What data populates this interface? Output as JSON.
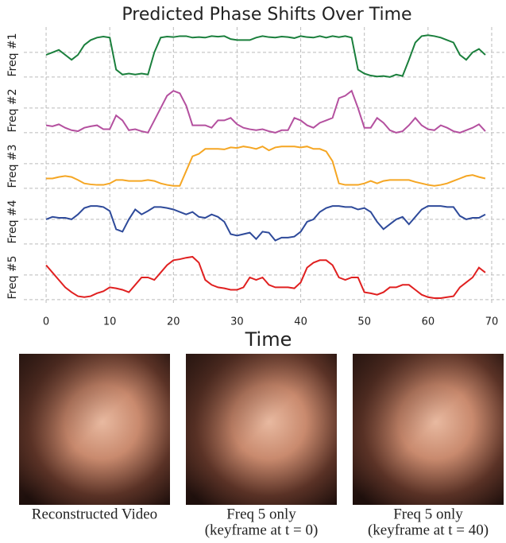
{
  "chart_data": {
    "type": "line",
    "title": "Predicted Phase Shifts Over Time",
    "xlabel": "Time",
    "x": [
      0,
      1,
      2,
      3,
      4,
      5,
      6,
      7,
      8,
      9,
      10,
      11,
      12,
      13,
      14,
      15,
      16,
      17,
      18,
      19,
      20,
      21,
      22,
      23,
      24,
      25,
      26,
      27,
      28,
      29,
      30,
      31,
      32,
      33,
      34,
      35,
      36,
      37,
      38,
      39,
      40,
      41,
      42,
      43,
      44,
      45,
      46,
      47,
      48,
      49,
      50,
      51,
      52,
      53,
      54,
      55,
      56,
      57,
      58,
      59,
      60,
      61,
      62,
      63,
      64,
      65,
      66,
      67,
      68,
      69
    ],
    "xlim": [
      -3.5,
      72
    ],
    "xticks": [
      0,
      10,
      20,
      30,
      40,
      50,
      60,
      70
    ],
    "ylim": [
      0,
      1
    ],
    "yticks": [
      0.05,
      0.55
    ],
    "grid": true,
    "stacked_panels": true,
    "series": [
      {
        "name": "Freq #1",
        "color": "#1a7f3c",
        "values": [
          0.5,
          0.55,
          0.6,
          0.5,
          0.4,
          0.5,
          0.7,
          0.8,
          0.85,
          0.87,
          0.85,
          0.2,
          0.1,
          0.12,
          0.1,
          0.12,
          0.1,
          0.55,
          0.85,
          0.87,
          0.86,
          0.88,
          0.88,
          0.85,
          0.86,
          0.85,
          0.88,
          0.87,
          0.88,
          0.82,
          0.8,
          0.8,
          0.8,
          0.85,
          0.88,
          0.86,
          0.85,
          0.87,
          0.86,
          0.84,
          0.88,
          0.86,
          0.85,
          0.88,
          0.85,
          0.88,
          0.86,
          0.88,
          0.85,
          0.2,
          0.12,
          0.08,
          0.06,
          0.07,
          0.05,
          0.1,
          0.07,
          0.4,
          0.75,
          0.88,
          0.9,
          0.88,
          0.85,
          0.8,
          0.75,
          0.5,
          0.4,
          0.55,
          0.62,
          0.5
        ]
      },
      {
        "name": "Freq #2",
        "color": "#b4509f",
        "values": [
          0.2,
          0.18,
          0.22,
          0.15,
          0.1,
          0.08,
          0.15,
          0.18,
          0.2,
          0.12,
          0.12,
          0.4,
          0.3,
          0.1,
          0.12,
          0.08,
          0.05,
          0.3,
          0.55,
          0.8,
          0.9,
          0.85,
          0.6,
          0.2,
          0.2,
          0.2,
          0.15,
          0.3,
          0.3,
          0.35,
          0.22,
          0.15,
          0.12,
          0.1,
          0.12,
          0.08,
          0.05,
          0.1,
          0.1,
          0.35,
          0.3,
          0.2,
          0.15,
          0.25,
          0.3,
          0.35,
          0.75,
          0.8,
          0.9,
          0.55,
          0.15,
          0.15,
          0.35,
          0.25,
          0.1,
          0.05,
          0.08,
          0.2,
          0.35,
          0.2,
          0.12,
          0.1,
          0.2,
          0.15,
          0.08,
          0.05,
          0.1,
          0.15,
          0.22,
          0.08
        ]
      },
      {
        "name": "Freq #3",
        "color": "#f5a623",
        "values": [
          0.25,
          0.25,
          0.28,
          0.3,
          0.28,
          0.22,
          0.15,
          0.13,
          0.12,
          0.12,
          0.15,
          0.22,
          0.22,
          0.2,
          0.2,
          0.2,
          0.22,
          0.2,
          0.15,
          0.12,
          0.1,
          0.1,
          0.4,
          0.7,
          0.75,
          0.85,
          0.85,
          0.85,
          0.84,
          0.88,
          0.87,
          0.9,
          0.88,
          0.85,
          0.9,
          0.82,
          0.88,
          0.9,
          0.9,
          0.9,
          0.88,
          0.9,
          0.85,
          0.85,
          0.8,
          0.6,
          0.15,
          0.12,
          0.12,
          0.12,
          0.15,
          0.2,
          0.15,
          0.2,
          0.22,
          0.22,
          0.22,
          0.22,
          0.18,
          0.15,
          0.12,
          0.1,
          0.12,
          0.15,
          0.2,
          0.25,
          0.3,
          0.32,
          0.28,
          0.25
        ]
      },
      {
        "name": "Freq #4",
        "color": "#2e4a9a",
        "values": [
          0.55,
          0.6,
          0.58,
          0.58,
          0.55,
          0.65,
          0.78,
          0.82,
          0.82,
          0.8,
          0.72,
          0.35,
          0.3,
          0.55,
          0.75,
          0.65,
          0.72,
          0.8,
          0.8,
          0.78,
          0.75,
          0.7,
          0.65,
          0.7,
          0.6,
          0.58,
          0.65,
          0.6,
          0.5,
          0.25,
          0.22,
          0.25,
          0.28,
          0.15,
          0.3,
          0.28,
          0.12,
          0.18,
          0.18,
          0.2,
          0.3,
          0.5,
          0.55,
          0.7,
          0.78,
          0.82,
          0.82,
          0.8,
          0.8,
          0.75,
          0.78,
          0.7,
          0.5,
          0.35,
          0.45,
          0.55,
          0.6,
          0.45,
          0.6,
          0.75,
          0.82,
          0.82,
          0.82,
          0.8,
          0.8,
          0.62,
          0.55,
          0.58,
          0.58,
          0.65
        ]
      },
      {
        "name": "Freq #5",
        "color": "#e02020",
        "values": [
          0.75,
          0.6,
          0.45,
          0.3,
          0.2,
          0.12,
          0.1,
          0.12,
          0.18,
          0.22,
          0.3,
          0.28,
          0.25,
          0.2,
          0.35,
          0.5,
          0.5,
          0.45,
          0.6,
          0.75,
          0.85,
          0.87,
          0.9,
          0.92,
          0.8,
          0.45,
          0.35,
          0.3,
          0.28,
          0.25,
          0.25,
          0.3,
          0.5,
          0.45,
          0.5,
          0.35,
          0.3,
          0.3,
          0.3,
          0.28,
          0.4,
          0.7,
          0.8,
          0.85,
          0.85,
          0.75,
          0.5,
          0.45,
          0.5,
          0.5,
          0.2,
          0.18,
          0.15,
          0.2,
          0.3,
          0.3,
          0.35,
          0.35,
          0.25,
          0.15,
          0.1,
          0.08,
          0.08,
          0.1,
          0.12,
          0.3,
          0.4,
          0.5,
          0.7,
          0.6
        ]
      }
    ]
  },
  "captions": [
    [
      "Reconstructed Video"
    ],
    [
      "Freq 5 only",
      "(keyframe at t = 0)"
    ],
    [
      "Freq 5 only",
      "(keyframe at t = 40)"
    ]
  ]
}
